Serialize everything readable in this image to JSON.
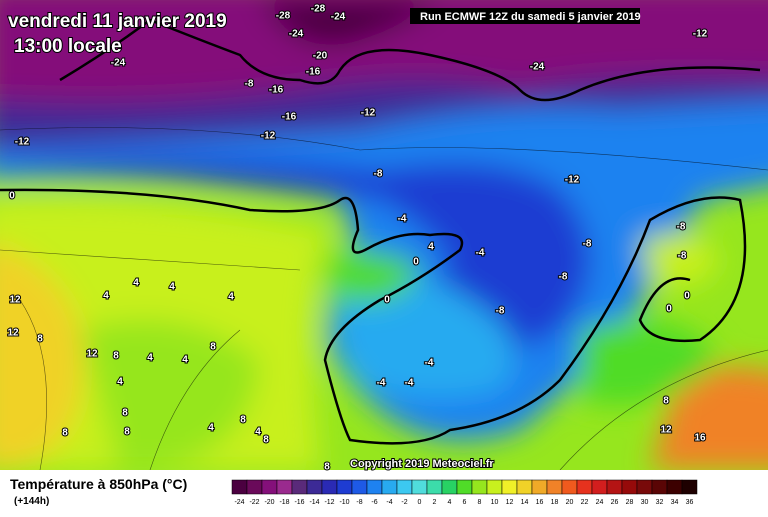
{
  "header": {
    "title": "vendredi 11 janvier 2019",
    "time": "13:00 locale",
    "run": "Run ECMWF 12Z du samedi 5 janvier 2019"
  },
  "footer": {
    "variable": "Température à 850hPa (°C)",
    "lead": "(+144h)",
    "copyright": "Copyright 2019 Meteociel.fr"
  },
  "scale": {
    "labels": [
      "-24",
      "-22",
      "-20",
      "-18",
      "-16",
      "-14",
      "-12",
      "-10",
      "-8",
      "-6",
      "-4",
      "-2",
      "0",
      "2",
      "4",
      "6",
      "8",
      "10",
      "12",
      "14",
      "16",
      "18",
      "20",
      "22",
      "24",
      "26",
      "28",
      "30",
      "32",
      "34",
      "36"
    ],
    "colors": [
      "#4b0040",
      "#6a0a5a",
      "#84107a",
      "#9a2a8e",
      "#5a2a7a",
      "#3c2a96",
      "#2a2ab4",
      "#1e3cd2",
      "#1e5ae6",
      "#1e82f0",
      "#28aaf0",
      "#3cc8f0",
      "#50dcdc",
      "#3cdcaa",
      "#28d264",
      "#50dc28",
      "#96e61e",
      "#c8f01e",
      "#f0f028",
      "#f0d228",
      "#f0aa28",
      "#f08228",
      "#f05a1e",
      "#e6321e",
      "#d21e1e",
      "#b41414",
      "#960a0a",
      "#780a0a",
      "#5a0505",
      "#3c0000",
      "#1e0000"
    ]
  },
  "map": {
    "labels": [
      "-28",
      "-28",
      "-24",
      "-24",
      "-24",
      "-20",
      "-16",
      "-8",
      "-16",
      "-16",
      "-12",
      "-12",
      "-12",
      "-24",
      "-12",
      "-8",
      "-12",
      "0",
      "-4",
      "-8",
      "-8",
      "-8",
      "-4",
      "-8",
      "0",
      "4",
      "0",
      "-8",
      "0",
      "0",
      "4",
      "4",
      "4",
      "4",
      "12",
      "12",
      "8",
      "12",
      "8",
      "4",
      "8",
      "4",
      "-4",
      "-4",
      "-4",
      "4",
      "8",
      "8",
      "8",
      "4",
      "8",
      "4",
      "8",
      "8",
      "12",
      "16",
      "8"
    ]
  }
}
